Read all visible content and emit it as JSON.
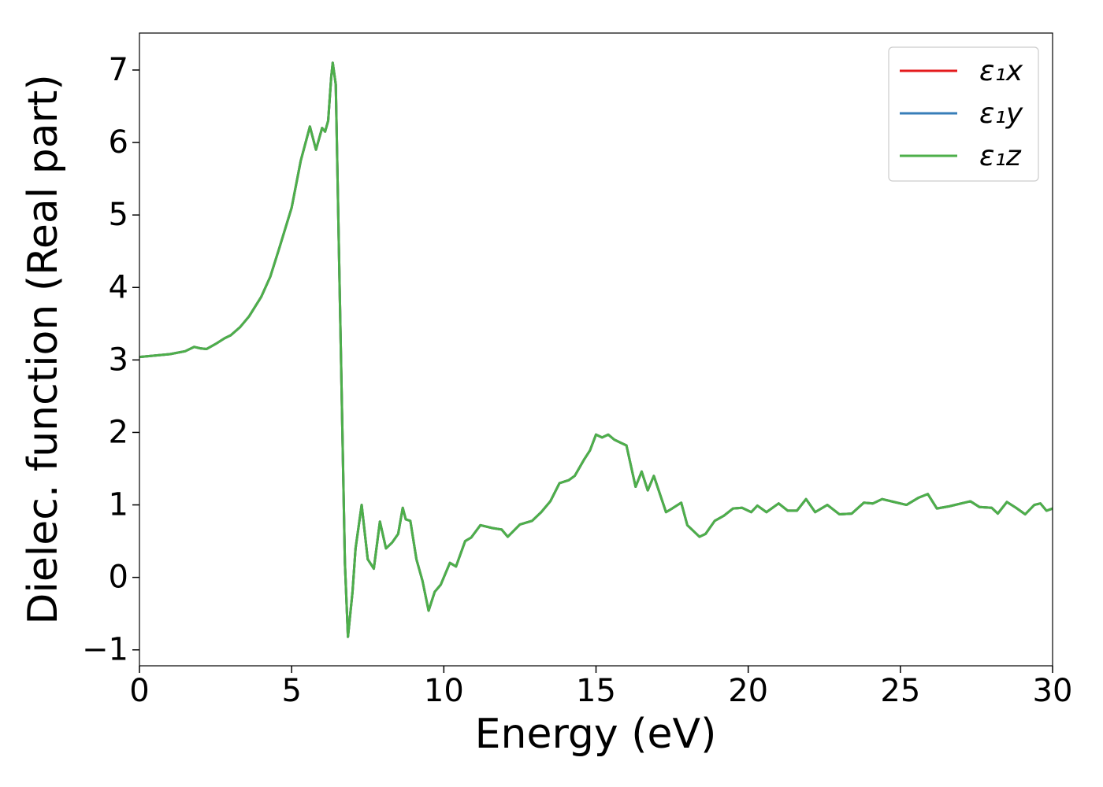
{
  "chart_data": {
    "type": "line",
    "xlabel": "Energy (eV)",
    "ylabel": "Dielec. function (Real part)",
    "x": [
      0,
      1,
      1.5,
      1.8,
      2.0,
      2.2,
      2.5,
      2.8,
      3.0,
      3.3,
      3.6,
      4.0,
      4.3,
      4.6,
      5.0,
      5.3,
      5.6,
      5.8,
      6.0,
      6.1,
      6.2,
      6.3,
      6.35,
      6.45,
      6.6,
      6.75,
      6.85,
      7.0,
      7.1,
      7.3,
      7.5,
      7.7,
      7.9,
      8.1,
      8.3,
      8.5,
      8.65,
      8.75,
      8.9,
      9.1,
      9.3,
      9.5,
      9.7,
      9.9,
      10.2,
      10.4,
      10.7,
      10.9,
      11.2,
      11.6,
      11.9,
      12.1,
      12.5,
      12.9,
      13.2,
      13.5,
      13.8,
      14.1,
      14.3,
      14.6,
      14.8,
      15.0,
      15.2,
      15.4,
      15.6,
      15.8,
      16.0,
      16.3,
      16.5,
      16.7,
      16.9,
      17.1,
      17.3,
      17.5,
      17.8,
      18.0,
      18.4,
      18.6,
      18.9,
      19.2,
      19.5,
      19.8,
      20.1,
      20.3,
      20.6,
      21.0,
      21.3,
      21.6,
      21.9,
      22.2,
      22.6,
      23.0,
      23.4,
      23.8,
      24.1,
      24.4,
      24.8,
      25.2,
      25.6,
      25.9,
      26.2,
      26.6,
      27.0,
      27.3,
      27.6,
      28.0,
      28.2,
      28.5,
      28.8,
      29.1,
      29.4,
      29.6,
      29.8,
      30.0
    ],
    "series": [
      {
        "name": "ε₁x",
        "color": "#e41a1c",
        "values": [
          3.04,
          3.08,
          3.12,
          3.18,
          3.16,
          3.15,
          3.22,
          3.3,
          3.34,
          3.45,
          3.6,
          3.87,
          4.15,
          4.55,
          5.1,
          5.75,
          6.22,
          5.9,
          6.2,
          6.15,
          6.3,
          6.9,
          7.1,
          6.8,
          3.5,
          0.2,
          -0.82,
          -0.2,
          0.4,
          1.0,
          0.25,
          0.12,
          0.77,
          0.4,
          0.48,
          0.6,
          0.96,
          0.8,
          0.78,
          0.25,
          -0.05,
          -0.46,
          -0.2,
          -0.1,
          0.2,
          0.15,
          0.5,
          0.55,
          0.72,
          0.68,
          0.66,
          0.56,
          0.73,
          0.78,
          0.9,
          1.05,
          1.3,
          1.34,
          1.4,
          1.62,
          1.75,
          1.97,
          1.93,
          1.97,
          1.9,
          1.86,
          1.82,
          1.25,
          1.46,
          1.2,
          1.4,
          1.15,
          0.9,
          0.95,
          1.03,
          0.72,
          0.56,
          0.6,
          0.78,
          0.85,
          0.95,
          0.96,
          0.9,
          0.99,
          0.9,
          1.02,
          0.92,
          0.92,
          1.08,
          0.9,
          1.0,
          0.87,
          0.88,
          1.03,
          1.02,
          1.08,
          1.04,
          1.0,
          1.1,
          1.15,
          0.95,
          0.98,
          1.02,
          1.05,
          0.97,
          0.96,
          0.88,
          1.04,
          0.96,
          0.87,
          1.0,
          1.02,
          0.92,
          0.95
        ]
      },
      {
        "name": "ε₁y",
        "color": "#377eb8",
        "values": [
          3.04,
          3.08,
          3.12,
          3.18,
          3.16,
          3.15,
          3.22,
          3.3,
          3.34,
          3.45,
          3.6,
          3.87,
          4.15,
          4.55,
          5.1,
          5.75,
          6.22,
          5.9,
          6.2,
          6.15,
          6.3,
          6.9,
          7.1,
          6.8,
          3.5,
          0.2,
          -0.82,
          -0.2,
          0.4,
          1.0,
          0.25,
          0.12,
          0.77,
          0.4,
          0.48,
          0.6,
          0.96,
          0.8,
          0.78,
          0.25,
          -0.05,
          -0.46,
          -0.2,
          -0.1,
          0.2,
          0.15,
          0.5,
          0.55,
          0.72,
          0.68,
          0.66,
          0.56,
          0.73,
          0.78,
          0.9,
          1.05,
          1.3,
          1.34,
          1.4,
          1.62,
          1.75,
          1.97,
          1.93,
          1.97,
          1.9,
          1.86,
          1.82,
          1.25,
          1.46,
          1.2,
          1.4,
          1.15,
          0.9,
          0.95,
          1.03,
          0.72,
          0.56,
          0.6,
          0.78,
          0.85,
          0.95,
          0.96,
          0.9,
          0.99,
          0.9,
          1.02,
          0.92,
          0.92,
          1.08,
          0.9,
          1.0,
          0.87,
          0.88,
          1.03,
          1.02,
          1.08,
          1.04,
          1.0,
          1.1,
          1.15,
          0.95,
          0.98,
          1.02,
          1.05,
          0.97,
          0.96,
          0.88,
          1.04,
          0.96,
          0.87,
          1.0,
          1.02,
          0.92,
          0.95
        ]
      },
      {
        "name": "ε₁z",
        "color": "#4daf4a",
        "values": [
          3.04,
          3.08,
          3.12,
          3.18,
          3.16,
          3.15,
          3.22,
          3.3,
          3.34,
          3.45,
          3.6,
          3.87,
          4.15,
          4.55,
          5.1,
          5.75,
          6.22,
          5.9,
          6.2,
          6.15,
          6.3,
          6.9,
          7.1,
          6.8,
          3.5,
          0.2,
          -0.82,
          -0.2,
          0.4,
          1.0,
          0.25,
          0.12,
          0.77,
          0.4,
          0.48,
          0.6,
          0.96,
          0.8,
          0.78,
          0.25,
          -0.05,
          -0.46,
          -0.2,
          -0.1,
          0.2,
          0.15,
          0.5,
          0.55,
          0.72,
          0.68,
          0.66,
          0.56,
          0.73,
          0.78,
          0.9,
          1.05,
          1.3,
          1.34,
          1.4,
          1.62,
          1.75,
          1.97,
          1.93,
          1.97,
          1.9,
          1.86,
          1.82,
          1.25,
          1.46,
          1.2,
          1.4,
          1.15,
          0.9,
          0.95,
          1.03,
          0.72,
          0.56,
          0.6,
          0.78,
          0.85,
          0.95,
          0.96,
          0.9,
          0.99,
          0.9,
          1.02,
          0.92,
          0.92,
          1.08,
          0.9,
          1.0,
          0.87,
          0.88,
          1.03,
          1.02,
          1.08,
          1.04,
          1.0,
          1.1,
          1.15,
          0.95,
          0.98,
          1.02,
          1.05,
          0.97,
          0.96,
          0.88,
          1.04,
          0.96,
          0.87,
          1.0,
          1.02,
          0.92,
          0.95
        ]
      }
    ],
    "xlim": [
      0,
      30
    ],
    "xticks": [
      0,
      5,
      10,
      15,
      20,
      25,
      30
    ],
    "ylim": [
      -1.22,
      7.51
    ],
    "yticks": [
      {
        "value": -1,
        "label": "−1"
      },
      0,
      1,
      2,
      3,
      4,
      5,
      6,
      7
    ],
    "legend": "upper right",
    "grid": false
  }
}
